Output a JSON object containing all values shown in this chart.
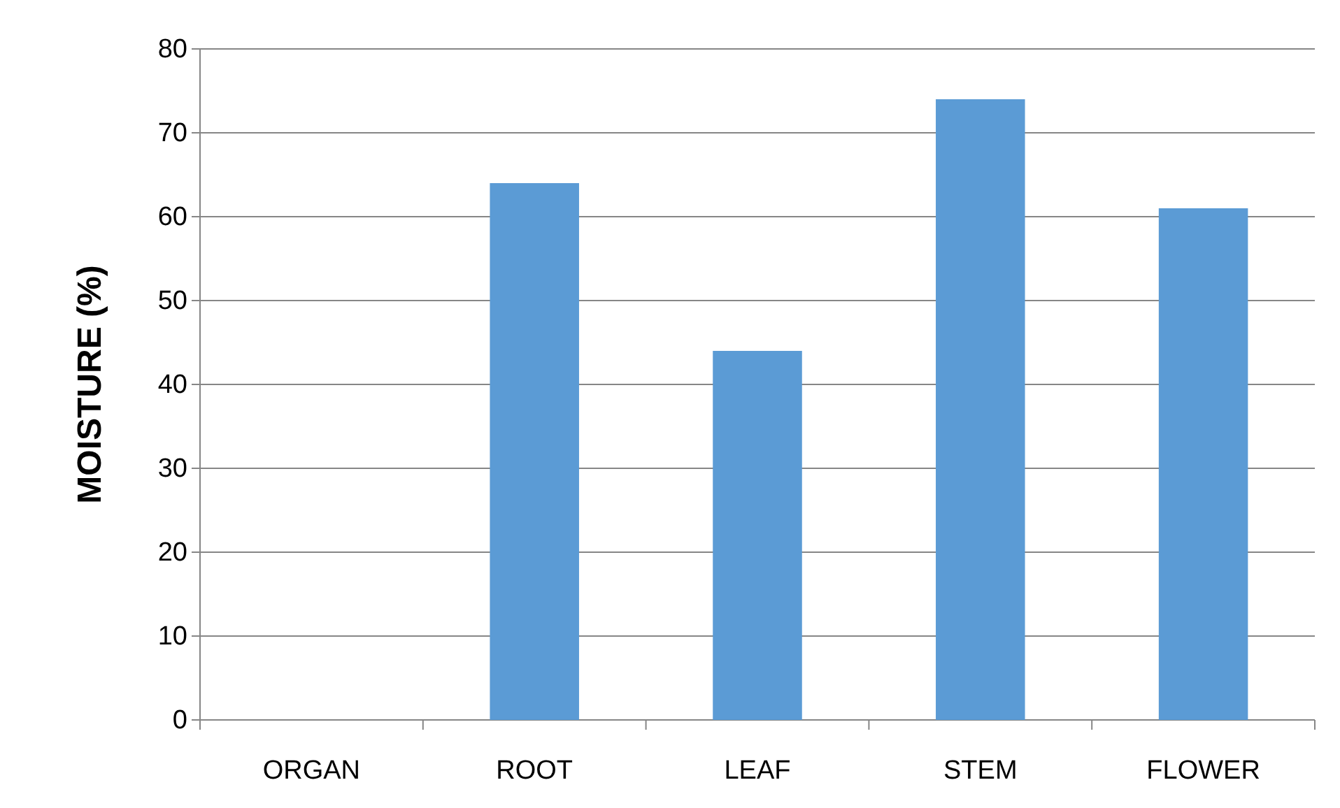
{
  "chart_data": {
    "type": "bar",
    "ylabel": "MOISTURE (%)",
    "categories": [
      "ORGAN",
      "ROOT",
      "LEAF",
      "STEM",
      "FLOWER"
    ],
    "series": [
      {
        "color": "#5b9bd5",
        "values": [
          null,
          64,
          44,
          74,
          61
        ]
      }
    ],
    "ylim": [
      0,
      80
    ],
    "yticks": [
      0,
      10,
      20,
      30,
      40,
      50,
      60,
      70,
      80
    ],
    "grid": "y"
  }
}
